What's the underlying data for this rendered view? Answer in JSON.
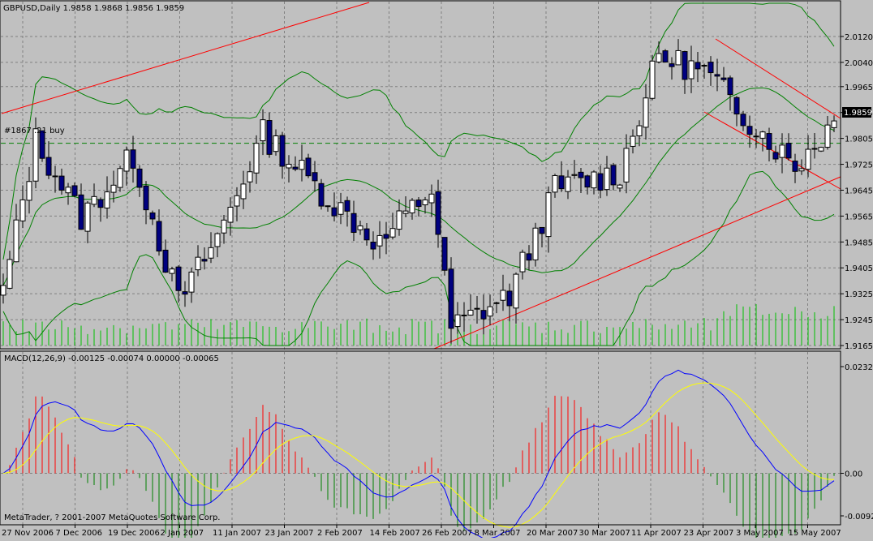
{
  "window": {
    "title": "GBPUSD,Daily  1.9858 1.9868 1.9856 1.9859",
    "order_label": "#1867 .21 buy",
    "watermark": "MetaTrader, ? 2001-2007 MetaQuotes Software Corp.",
    "price_badge": "1.9859"
  },
  "colors": {
    "background": "#c0c0c0",
    "grid": "#808080",
    "bull_candle": "#ffffff",
    "bear_candle": "#000080",
    "bollinger": "#008000",
    "channel": "#ff0000",
    "volume": "#00c000",
    "macd_line": "#0000ff",
    "signal_line": "#ffff00",
    "hist_up": "#ff0000",
    "hist_down": "#008000"
  },
  "chart_data": [
    {
      "type": "candlestick",
      "title": "GBPUSD,Daily  1.9858 1.9868 1.9856 1.9859",
      "ylim": [
        1.9165,
        2.016
      ],
      "y_ticks": [
        "2.0120",
        "2.0040",
        "1.9965",
        "1.9885",
        "1.9805",
        "1.9725",
        "1.9645",
        "1.9565",
        "1.9485",
        "1.9405",
        "1.9325",
        "1.9245",
        "1.9165"
      ],
      "x_ticks": [
        "27 Nov 2006",
        "7 Dec 2006",
        "19 Dec 2006",
        "2 Jan 2007",
        "11 Jan 2007",
        "23 Jan 2007",
        "2 Feb 2007",
        "14 Feb 2007",
        "26 Feb 2007",
        "8 Mar 2007",
        "20 Mar 2007",
        "30 Mar 2007",
        "11 Apr 2007",
        "23 Apr 2007",
        "3 May 2007",
        "15 May 2007"
      ],
      "last_close": "1.9859",
      "grid": true
    },
    {
      "type": "line",
      "title": "MACD(12,26,9) -0.00125 -0.00074 0.00000 -0.00065",
      "ylim": [
        -0.00928,
        0.02326
      ],
      "y_ticks": [
        "0.02326",
        "0.00",
        "-0.00928"
      ],
      "series": [
        {
          "name": "MACD",
          "color": "#0000ff"
        },
        {
          "name": "Signal",
          "color": "#ffff00"
        }
      ]
    }
  ]
}
